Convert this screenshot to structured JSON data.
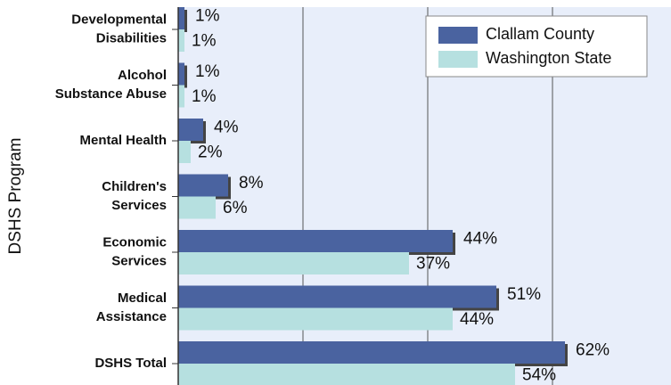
{
  "chart_data": {
    "type": "hbar",
    "y_label": "DSHS Program",
    "categories": [
      "Developmental\nDisabilities",
      "Alcohol\nSubstance Abuse",
      "Mental Health",
      "Children's\nServices",
      "Economic\nServices",
      "Medical\nAssistance",
      "DSHS Total"
    ],
    "series": [
      {
        "name": "Clallam County",
        "color": "#4a63a0",
        "values": [
          1,
          1,
          4,
          8,
          44,
          51,
          62
        ],
        "value_labels": [
          "1%",
          "1%",
          "4%",
          "8%",
          "44%",
          "51%",
          "62%"
        ]
      },
      {
        "name": "Washington State",
        "color": "#b6e0e0",
        "values": [
          1,
          1,
          2,
          6,
          37,
          44,
          54
        ],
        "value_labels": [
          "1%",
          "1%",
          "2%",
          "6%",
          "37%",
          "44%",
          "54%"
        ]
      }
    ],
    "xlim": [
      0,
      80
    ],
    "xticks": [
      0,
      20,
      40,
      60,
      80
    ],
    "grid": true,
    "legend": "top-right"
  }
}
